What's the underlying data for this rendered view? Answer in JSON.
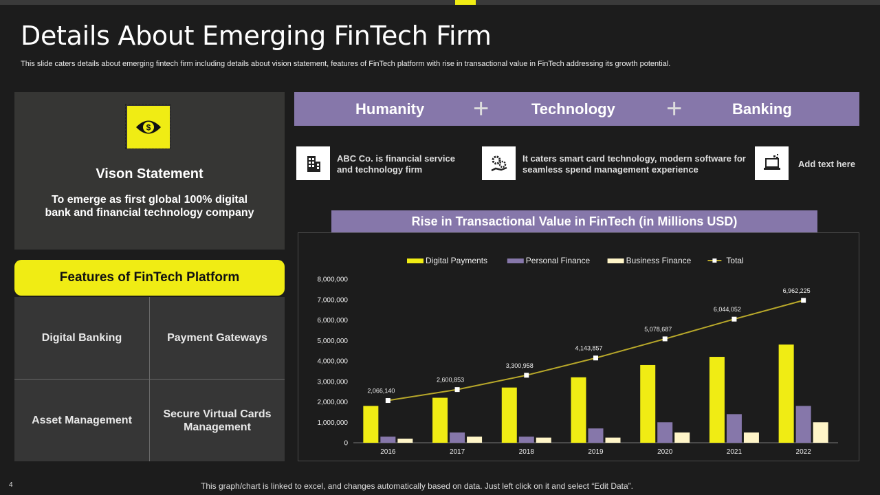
{
  "title": "Details About Emerging FinTech Firm",
  "subtitle": "This slide caters details about emerging fintech firm including details about vision statement, features of FinTech platform with rise in transactional value in FinTech addressing its growth potential.",
  "vision": {
    "icon": "eye-dollar-icon",
    "heading": "Vison Statement",
    "text": "To emerge as first global 100% digital bank and financial technology company"
  },
  "features": {
    "heading": "Features of FinTech Platform",
    "items": [
      "Digital Banking",
      "Payment Gateways",
      "Asset Management",
      "Secure Virtual Cards Management"
    ]
  },
  "banner": {
    "items": [
      "Humanity",
      "Technology",
      "Banking"
    ],
    "separator": "+"
  },
  "info": [
    {
      "icon": "building-icon",
      "text": "ABC Co. is financial service and technology firm"
    },
    {
      "icon": "gears-hand-icon",
      "text": "It caters smart card technology, modern software for seamless spend management experience"
    },
    {
      "icon": "laptop-icon",
      "text": "Add text here"
    }
  ],
  "chart_title": "Rise in Transactional Value in FinTech (in Millions USD)",
  "colors": {
    "accent": "#f0ec14",
    "purple": "#8677aa",
    "cream": "#fff5c8",
    "line": "#b8a82a"
  },
  "chart_data": {
    "type": "bar",
    "categories": [
      "2016",
      "2017",
      "2018",
      "2019",
      "2020",
      "2021",
      "2022"
    ],
    "series": [
      {
        "name": "Digital Payments",
        "values": [
          1800000,
          2200000,
          2700000,
          3200000,
          3800000,
          4200000,
          4800000
        ]
      },
      {
        "name": "Personal Finance",
        "values": [
          300000,
          500000,
          300000,
          700000,
          1000000,
          1400000,
          1800000
        ]
      },
      {
        "name": "Business Finance",
        "values": [
          200000,
          300000,
          250000,
          250000,
          500000,
          500000,
          1000000
        ]
      },
      {
        "name": "Total",
        "type": "line",
        "values": [
          2066140,
          2600853,
          3300958,
          4143857,
          5078687,
          6044052,
          6962225
        ]
      }
    ],
    "line_labels": [
      "2,066,140",
      "2,600,853",
      "3,300,958",
      "4,143,857",
      "5,078,687",
      "6,044,052",
      "6,962,225"
    ],
    "yticks": [
      "0",
      "1,000,000",
      "2,000,000",
      "3,000,000",
      "4,000,000",
      "5,000,000",
      "6,000,000",
      "7,000,000",
      "8,000,000"
    ],
    "ylim": [
      0,
      8000000
    ],
    "legend": "top",
    "xlabel": "",
    "ylabel": ""
  },
  "footer": "This graph/chart is linked to excel, and changes automatically based on data. Just left click on it and select “Edit Data”.",
  "page_number": "4"
}
